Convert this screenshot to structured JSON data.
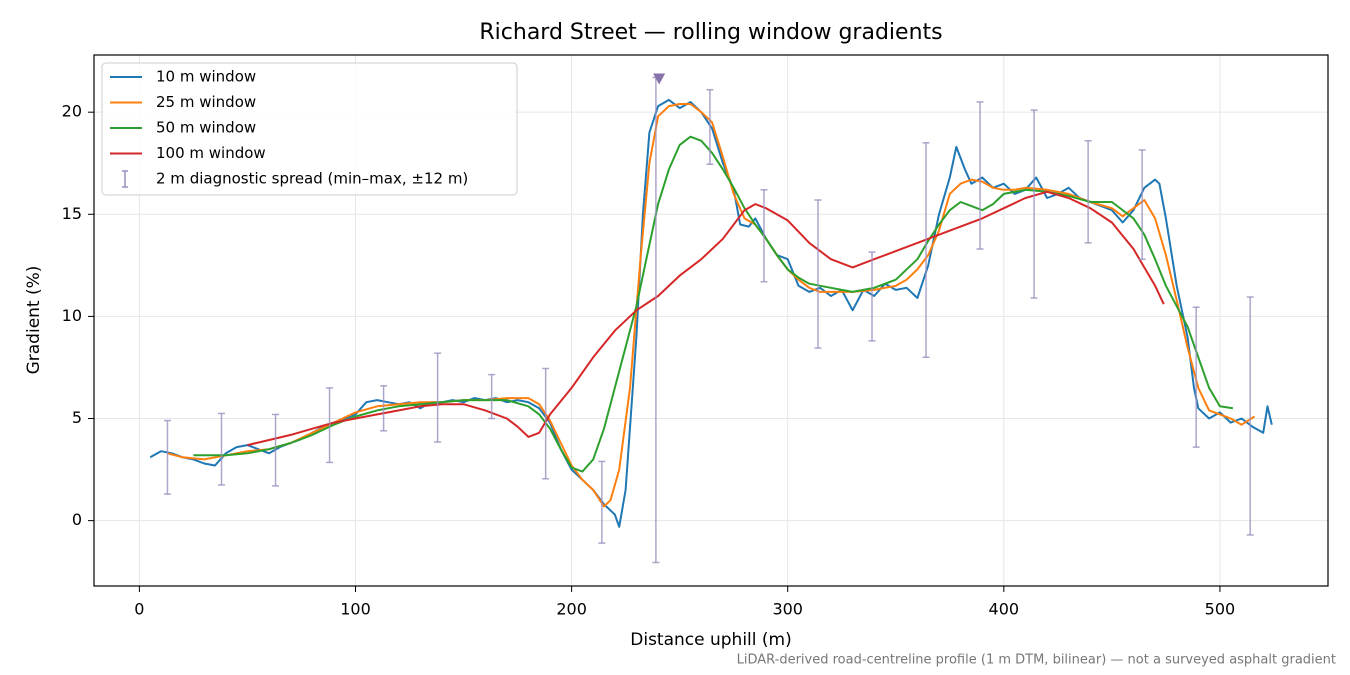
{
  "chart_data": {
    "type": "line",
    "title": "Richard Street — rolling window gradients",
    "xlabel": "Distance uphill (m)",
    "ylabel": "Gradient (%)",
    "footnote": "LiDAR-derived road-centreline profile (1 m DTM, bilinear) — not a surveyed asphalt gradient",
    "xlim": [
      -21,
      550
    ],
    "ylim": [
      -3.2,
      22.8
    ],
    "xticks": [
      0,
      100,
      200,
      300,
      400,
      500
    ],
    "yticks": [
      0,
      5,
      10,
      15,
      20
    ],
    "grid": true,
    "legend": "upper-left",
    "series": [
      {
        "name": "10 m window",
        "color": "#1f77b4",
        "x": [
          5,
          10,
          15,
          20,
          25,
          30,
          35,
          40,
          45,
          50,
          55,
          60,
          65,
          70,
          75,
          80,
          85,
          90,
          95,
          100,
          105,
          110,
          115,
          120,
          125,
          130,
          135,
          140,
          145,
          150,
          155,
          160,
          165,
          170,
          175,
          180,
          185,
          190,
          195,
          200,
          205,
          210,
          215,
          220,
          222,
          225,
          230,
          233,
          236,
          240,
          245,
          250,
          255,
          260,
          265,
          270,
          275,
          278,
          282,
          285,
          290,
          295,
          300,
          305,
          310,
          315,
          320,
          325,
          330,
          335,
          340,
          345,
          350,
          355,
          360,
          365,
          370,
          375,
          378,
          382,
          385,
          390,
          395,
          400,
          405,
          410,
          415,
          420,
          425,
          430,
          435,
          440,
          445,
          450,
          455,
          460,
          465,
          470,
          472,
          475,
          480,
          485,
          488,
          490,
          495,
          500,
          505,
          510,
          515,
          520,
          522,
          524
        ],
        "values": [
          3.1,
          3.4,
          3.3,
          3.1,
          3.0,
          2.8,
          2.7,
          3.3,
          3.6,
          3.7,
          3.5,
          3.3,
          3.6,
          3.8,
          4.0,
          4.3,
          4.6,
          4.8,
          5.0,
          5.2,
          5.8,
          5.9,
          5.8,
          5.7,
          5.8,
          5.5,
          5.8,
          5.8,
          5.9,
          5.8,
          6.0,
          5.9,
          6.0,
          5.8,
          5.9,
          5.8,
          5.5,
          4.8,
          3.5,
          2.5,
          2.0,
          1.5,
          0.8,
          0.3,
          -0.3,
          1.5,
          9,
          15,
          19,
          20.3,
          20.6,
          20.2,
          20.5,
          20.0,
          19.2,
          17.5,
          16.2,
          14.5,
          14.4,
          14.8,
          13.8,
          13.0,
          12.8,
          11.5,
          11.2,
          11.4,
          11.0,
          11.3,
          10.3,
          11.3,
          11.0,
          11.6,
          11.3,
          11.4,
          10.9,
          12.5,
          15.0,
          16.8,
          18.3,
          17.2,
          16.5,
          16.8,
          16.3,
          16.5,
          16.0,
          16.2,
          16.8,
          15.8,
          16.0,
          16.3,
          15.8,
          15.6,
          15.4,
          15.2,
          14.6,
          15.2,
          16.3,
          16.7,
          16.5,
          14.8,
          11.5,
          9.0,
          6.5,
          5.5,
          5.0,
          5.3,
          4.8,
          5.0,
          4.6,
          4.3,
          5.6,
          4.7
        ]
      },
      {
        "name": "25 m window",
        "color": "#ff7f0e",
        "x": [
          13,
          20,
          30,
          40,
          50,
          60,
          70,
          80,
          90,
          100,
          110,
          120,
          130,
          140,
          150,
          160,
          170,
          180,
          185,
          190,
          195,
          200,
          205,
          210,
          215,
          218,
          222,
          227,
          232,
          236,
          240,
          245,
          250,
          255,
          260,
          265,
          270,
          275,
          280,
          285,
          290,
          295,
          300,
          305,
          310,
          315,
          320,
          330,
          340,
          350,
          355,
          360,
          365,
          370,
          375,
          380,
          385,
          390,
          395,
          400,
          405,
          410,
          420,
          430,
          440,
          450,
          455,
          460,
          465,
          470,
          475,
          480,
          485,
          490,
          495,
          500,
          505,
          510,
          516
        ],
        "values": [
          3.3,
          3.1,
          3.0,
          3.2,
          3.4,
          3.5,
          3.8,
          4.3,
          4.8,
          5.3,
          5.6,
          5.7,
          5.8,
          5.8,
          5.9,
          5.9,
          6.0,
          6.0,
          5.7,
          4.9,
          3.8,
          2.7,
          2.0,
          1.5,
          0.7,
          1.0,
          2.5,
          6.5,
          13,
          17.5,
          19.8,
          20.3,
          20.4,
          20.4,
          20.0,
          19.5,
          17.8,
          16.0,
          14.8,
          14.5,
          13.8,
          13.0,
          12.3,
          11.8,
          11.4,
          11.2,
          11.2,
          11.2,
          11.3,
          11.5,
          11.8,
          12.3,
          13.0,
          14.2,
          16.0,
          16.5,
          16.7,
          16.6,
          16.3,
          16.2,
          16.2,
          16.3,
          16.2,
          16.0,
          15.6,
          15.3,
          14.9,
          15.3,
          15.7,
          14.8,
          13.0,
          10.8,
          8.5,
          6.5,
          5.4,
          5.2,
          5.0,
          4.7,
          5.1
        ]
      },
      {
        "name": "50 m window",
        "color": "#2ca02c",
        "x": [
          25,
          40,
          50,
          60,
          70,
          80,
          90,
          100,
          110,
          120,
          130,
          140,
          150,
          160,
          170,
          180,
          185,
          190,
          195,
          200,
          205,
          210,
          215,
          220,
          225,
          230,
          235,
          240,
          245,
          250,
          255,
          260,
          265,
          270,
          275,
          280,
          285,
          290,
          295,
          300,
          305,
          310,
          320,
          330,
          340,
          350,
          360,
          365,
          370,
          375,
          380,
          385,
          390,
          395,
          400,
          410,
          420,
          430,
          440,
          450,
          460,
          465,
          470,
          475,
          480,
          485,
          490,
          495,
          500,
          506
        ],
        "values": [
          3.2,
          3.2,
          3.3,
          3.5,
          3.8,
          4.2,
          4.7,
          5.1,
          5.4,
          5.6,
          5.7,
          5.8,
          5.9,
          5.9,
          5.9,
          5.6,
          5.2,
          4.5,
          3.5,
          2.6,
          2.4,
          3.0,
          4.5,
          6.5,
          8.5,
          10.5,
          13,
          15.5,
          17.2,
          18.4,
          18.8,
          18.6,
          18.0,
          17.2,
          16.3,
          15.3,
          14.5,
          13.8,
          13.0,
          12.3,
          11.9,
          11.6,
          11.4,
          11.2,
          11.4,
          11.8,
          12.8,
          13.7,
          14.5,
          15.2,
          15.6,
          15.4,
          15.2,
          15.5,
          16.0,
          16.2,
          16.1,
          15.9,
          15.6,
          15.6,
          14.8,
          14.0,
          12.8,
          11.5,
          10.5,
          9.5,
          8.0,
          6.5,
          5.6,
          5.5
        ]
      },
      {
        "name": "100 m window",
        "color": "#d62728",
        "x": [
          50,
          60,
          70,
          80,
          90,
          100,
          110,
          120,
          130,
          140,
          150,
          160,
          170,
          175,
          180,
          185,
          190,
          200,
          210,
          220,
          230,
          240,
          250,
          260,
          270,
          280,
          285,
          290,
          300,
          310,
          320,
          330,
          340,
          350,
          360,
          370,
          380,
          390,
          400,
          410,
          420,
          430,
          440,
          450,
          460,
          470,
          474
        ],
        "values": [
          3.7,
          3.95,
          4.2,
          4.5,
          4.8,
          5.0,
          5.2,
          5.4,
          5.6,
          5.7,
          5.7,
          5.4,
          5.0,
          4.6,
          4.1,
          4.3,
          5.2,
          6.5,
          8.0,
          9.3,
          10.3,
          11.0,
          12.0,
          12.8,
          13.8,
          15.2,
          15.5,
          15.3,
          14.7,
          13.6,
          12.8,
          12.4,
          12.8,
          13.2,
          13.6,
          14.0,
          14.4,
          14.8,
          15.3,
          15.8,
          16.1,
          15.8,
          15.3,
          14.6,
          13.3,
          11.5,
          10.6
        ]
      },
      {
        "name": "2 m diagnostic spread (min–max, ±12 m)",
        "type": "errorbar",
        "color": "#9a8fbf",
        "x": [
          13,
          38,
          63,
          88,
          113,
          138,
          163,
          188,
          214,
          239,
          264,
          289,
          314,
          339,
          364,
          389,
          414,
          439,
          464,
          489,
          514
        ],
        "low": [
          1.3,
          1.75,
          1.7,
          2.85,
          4.4,
          3.85,
          5.0,
          2.05,
          -1.1,
          -2.05,
          17.45,
          11.7,
          8.45,
          8.8,
          8.0,
          13.3,
          10.9,
          13.6,
          12.8,
          3.6,
          -0.7
        ],
        "high": [
          4.9,
          5.25,
          5.2,
          6.5,
          6.6,
          8.2,
          7.15,
          7.45,
          2.9,
          21.7,
          21.1,
          16.2,
          15.7,
          13.15,
          18.5,
          20.5,
          20.1,
          18.6,
          18.15,
          10.45,
          10.95
        ],
        "markers": [
          {
            "x": 240.5,
            "y": 21.6,
            "color": "#8572a8"
          }
        ]
      }
    ]
  }
}
